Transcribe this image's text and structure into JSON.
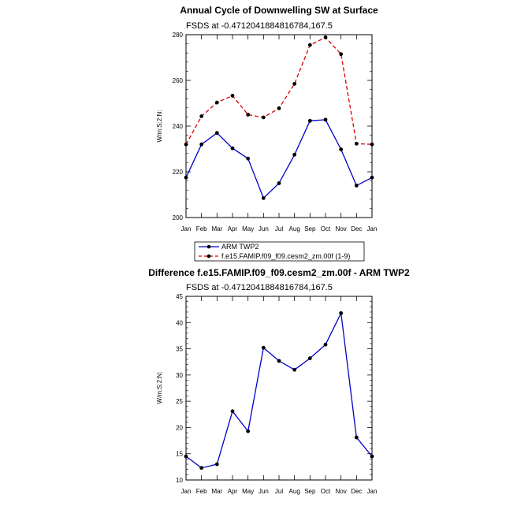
{
  "chart_data": [
    {
      "type": "line",
      "title": "Annual Cycle of Downwelling SW at Surface",
      "subtitle": "FSDS at -0.4712041884816784,167.5",
      "ylabel": "W/m:S:2:N:",
      "xlabel": "",
      "categories": [
        "Jan",
        "Feb",
        "Mar",
        "Apr",
        "May",
        "Jun",
        "Jul",
        "Aug",
        "Sep",
        "Oct",
        "Nov",
        "Dec",
        "Jan"
      ],
      "ylim": [
        200,
        280
      ],
      "yticks": [
        200,
        220,
        240,
        260,
        280
      ],
      "series": [
        {
          "name": "ARM TWP2",
          "color": "#0000cc",
          "dash": "solid",
          "values": [
            217.5,
            232,
            237,
            230.3,
            225.8,
            208.5,
            215,
            227.5,
            242.3,
            242.8,
            229.8,
            214,
            217.5
          ]
        },
        {
          "name": "f.e15.FAMIP.f09_f09.cesm2_zm.00f (1-9)",
          "color": "#dd0000",
          "dash": "dashed",
          "values": [
            232,
            244.3,
            250.3,
            253.3,
            245,
            243.8,
            247.8,
            258.5,
            275.5,
            278.8,
            271.5,
            232.3,
            232
          ]
        }
      ],
      "legend": "below"
    },
    {
      "type": "line",
      "title": "Difference f.e15.FAMIP.f09_f09.cesm2_zm.00f - ARM TWP2",
      "subtitle": "FSDS at -0.4712041884816784,167.5",
      "ylabel": "W/m:S:2:N:",
      "xlabel": "",
      "categories": [
        "Jan",
        "Feb",
        "Mar",
        "Apr",
        "May",
        "Jun",
        "Jul",
        "Aug",
        "Sep",
        "Oct",
        "Nov",
        "Dec",
        "Jan"
      ],
      "ylim": [
        10,
        45
      ],
      "yticks": [
        10,
        15,
        20,
        25,
        30,
        35,
        40,
        45
      ],
      "series": [
        {
          "color": "#0000cc",
          "dash": "solid",
          "values": [
            14.5,
            12.3,
            13,
            23.1,
            19.3,
            35.2,
            32.7,
            31,
            33.2,
            35.8,
            41.8,
            18.1,
            14.5
          ]
        }
      ]
    }
  ]
}
